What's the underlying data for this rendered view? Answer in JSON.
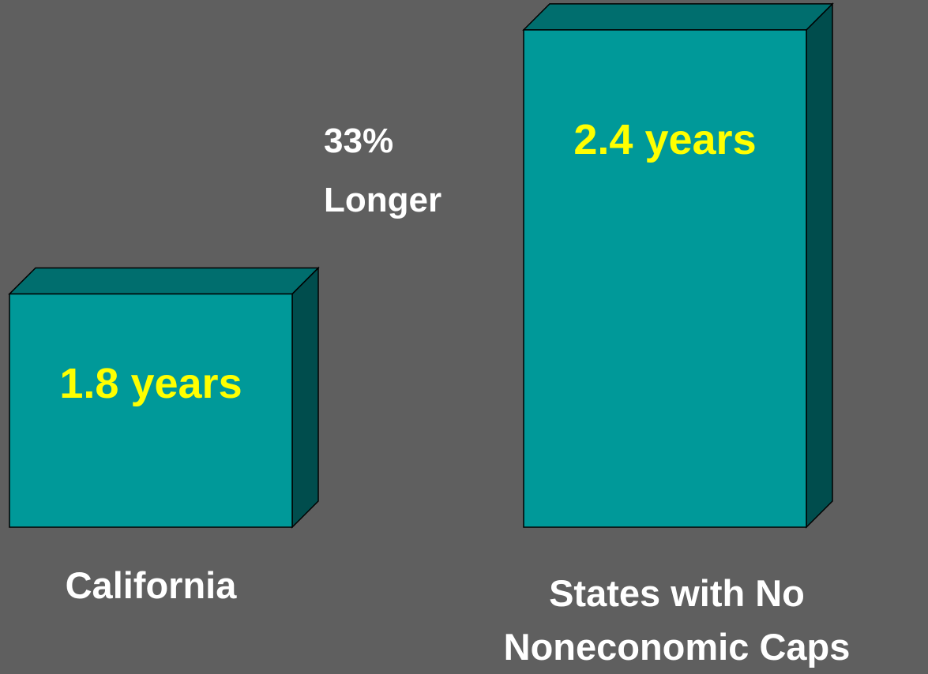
{
  "chart_data": {
    "type": "bar3d",
    "annotation": "33% Longer",
    "categories": [
      "California",
      "States with No Noneconomic Caps"
    ],
    "values": [
      1.8,
      2.4
    ],
    "value_labels": [
      "1.8 years",
      "2.4 years"
    ],
    "color": "#009999",
    "ylim": [
      1.27,
      2.45
    ]
  }
}
